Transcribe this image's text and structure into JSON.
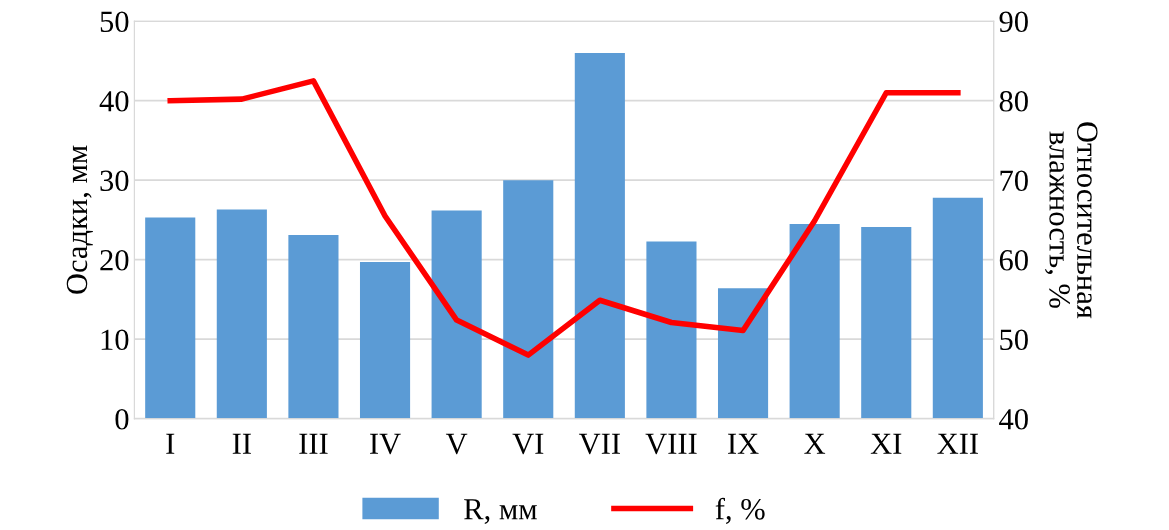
{
  "chart_data": {
    "type": "bar",
    "categories": [
      "I",
      "II",
      "III",
      "IV",
      "V",
      "VI",
      "VII",
      "VIII",
      "IX",
      "X",
      "XI",
      "XII"
    ],
    "ylabel": "Осадки, мм",
    "y2label": "Относительная\nвлажность, %",
    "series": [
      {
        "name": "R, мм",
        "color": "#5b9bd5",
        "values": [
          25.3,
          26.3,
          23.1,
          19.7,
          26.2,
          30.0,
          46.0,
          22.3,
          16.4,
          24.5,
          24.1,
          27.8
        ]
      },
      {
        "name": "f, %",
        "type": "line",
        "axis": "y2",
        "color": "#ff0000",
        "values": [
          80.0,
          80.2,
          82.5,
          65.5,
          52.4,
          48.0,
          54.9,
          52.1,
          51.1,
          64.9,
          81.0,
          81.0
        ]
      }
    ],
    "ylim": [
      0,
      50
    ],
    "yticks": [
      0,
      10,
      20,
      30,
      40,
      50
    ],
    "y2lim": [
      40,
      90
    ],
    "y2ticks": [
      40,
      50,
      60,
      70,
      80,
      90
    ],
    "grid": "y",
    "legend": "bottom",
    "marker": "none",
    "line_style": "solid"
  }
}
